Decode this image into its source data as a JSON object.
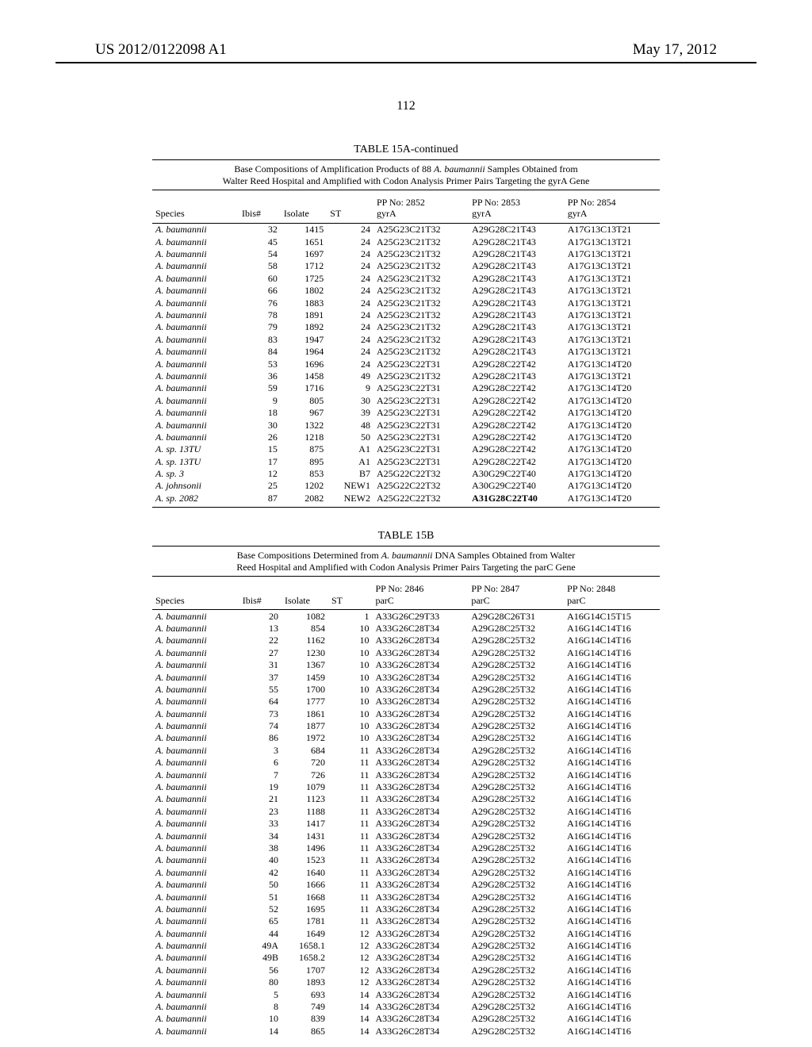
{
  "header": {
    "pub_number": "US 2012/0122098 A1",
    "pub_date": "May 17, 2012",
    "page_number": "112"
  },
  "tableA": {
    "label": "TABLE 15A-continued",
    "caption": "Base Compositions of Amplification Products of 88 A. baumannii Samples Obtained from Walter Reed Hospital and Amplified with Codon Analysis Primer Pairs Targeting the gyrA Gene",
    "columns": {
      "species": "Species",
      "ibis": "Ibis#",
      "isolate": "Isolate",
      "st": "ST",
      "pp1a": "PP No: 2852",
      "pp1b": "gyrA",
      "pp2a": "PP No: 2853",
      "pp2b": "gyrA",
      "pp3a": "PP No: 2854",
      "pp3b": "gyrA"
    },
    "rows": [
      {
        "sp": "A. baumannii",
        "ib": "32",
        "is": "1415",
        "st": "24",
        "p1": "A25G23C21T32",
        "p2": "A29G28C21T43",
        "p3": "A17G13C13T21"
      },
      {
        "sp": "A. baumannii",
        "ib": "45",
        "is": "1651",
        "st": "24",
        "p1": "A25G23C21T32",
        "p2": "A29G28C21T43",
        "p3": "A17G13C13T21"
      },
      {
        "sp": "A. baumannii",
        "ib": "54",
        "is": "1697",
        "st": "24",
        "p1": "A25G23C21T32",
        "p2": "A29G28C21T43",
        "p3": "A17G13C13T21"
      },
      {
        "sp": "A. baumannii",
        "ib": "58",
        "is": "1712",
        "st": "24",
        "p1": "A25G23C21T32",
        "p2": "A29G28C21T43",
        "p3": "A17G13C13T21"
      },
      {
        "sp": "A. baumannii",
        "ib": "60",
        "is": "1725",
        "st": "24",
        "p1": "A25G23C21T32",
        "p2": "A29G28C21T43",
        "p3": "A17G13C13T21"
      },
      {
        "sp": "A. baumannii",
        "ib": "66",
        "is": "1802",
        "st": "24",
        "p1": "A25G23C21T32",
        "p2": "A29G28C21T43",
        "p3": "A17G13C13T21"
      },
      {
        "sp": "A. baumannii",
        "ib": "76",
        "is": "1883",
        "st": "24",
        "p1": "A25G23C21T32",
        "p2": "A29G28C21T43",
        "p3": "A17G13C13T21"
      },
      {
        "sp": "A. baumannii",
        "ib": "78",
        "is": "1891",
        "st": "24",
        "p1": "A25G23C21T32",
        "p2": "A29G28C21T43",
        "p3": "A17G13C13T21"
      },
      {
        "sp": "A. baumannii",
        "ib": "79",
        "is": "1892",
        "st": "24",
        "p1": "A25G23C21T32",
        "p2": "A29G28C21T43",
        "p3": "A17G13C13T21"
      },
      {
        "sp": "A. baumannii",
        "ib": "83",
        "is": "1947",
        "st": "24",
        "p1": "A25G23C21T32",
        "p2": "A29G28C21T43",
        "p3": "A17G13C13T21"
      },
      {
        "sp": "A. baumannii",
        "ib": "84",
        "is": "1964",
        "st": "24",
        "p1": "A25G23C21T32",
        "p2": "A29G28C21T43",
        "p3": "A17G13C13T21"
      },
      {
        "sp": "A. baumannii",
        "ib": "53",
        "is": "1696",
        "st": "24",
        "p1": "A25G23C22T31",
        "p2": "A29G28C22T42",
        "p3": "A17G13C14T20"
      },
      {
        "sp": "A. baumannii",
        "ib": "36",
        "is": "1458",
        "st": "49",
        "p1": "A25G23C21T32",
        "p2": "A29G28C21T43",
        "p3": "A17G13C13T21"
      },
      {
        "sp": "A. baumannii",
        "ib": "59",
        "is": "1716",
        "st": "9",
        "p1": "A25G23C22T31",
        "p2": "A29G28C22T42",
        "p3": "A17G13C14T20"
      },
      {
        "sp": "A. baumannii",
        "ib": "9",
        "is": "805",
        "st": "30",
        "p1": "A25G23C22T31",
        "p2": "A29G28C22T42",
        "p3": "A17G13C14T20"
      },
      {
        "sp": "A. baumannii",
        "ib": "18",
        "is": "967",
        "st": "39",
        "p1": "A25G23C22T31",
        "p2": "A29G28C22T42",
        "p3": "A17G13C14T20"
      },
      {
        "sp": "A. baumannii",
        "ib": "30",
        "is": "1322",
        "st": "48",
        "p1": "A25G23C22T31",
        "p2": "A29G28C22T42",
        "p3": "A17G13C14T20"
      },
      {
        "sp": "A. baumannii",
        "ib": "26",
        "is": "1218",
        "st": "50",
        "p1": "A25G23C22T31",
        "p2": "A29G28C22T42",
        "p3": "A17G13C14T20"
      },
      {
        "sp": "A. sp. 13TU",
        "ib": "15",
        "is": "875",
        "st": "A1",
        "p1": "A25G23C22T31",
        "p2": "A29G28C22T42",
        "p3": "A17G13C14T20"
      },
      {
        "sp": "A. sp. 13TU",
        "ib": "17",
        "is": "895",
        "st": "A1",
        "p1": "A25G23C22T31",
        "p2": "A29G28C22T42",
        "p3": "A17G13C14T20"
      },
      {
        "sp": "A. sp. 3",
        "ib": "12",
        "is": "853",
        "st": "B7",
        "p1": "A25G22C22T32",
        "p2": "A30G29C22T40",
        "p3": "A17G13C14T20"
      },
      {
        "sp": "A. johnsonii",
        "ib": "25",
        "is": "1202",
        "st": "NEW1",
        "p1": "A25G22C22T32",
        "p2": "A30G29C22T40",
        "p3": "A17G13C14T20"
      },
      {
        "sp": "A. sp. 2082",
        "ib": "87",
        "is": "2082",
        "st": "NEW2",
        "p1": "A25G22C22T32",
        "p2": "A31G28C22T40",
        "p3": "A17G13C14T20",
        "p2_bold": true
      }
    ]
  },
  "tableB": {
    "label": "TABLE 15B",
    "caption": "Base Compositions Determined from A. baumannii DNA Samples Obtained from Walter Reed Hospital and Amplified with Codon Analysis Primer Pairs Targeting the parC Gene",
    "columns": {
      "species": "Species",
      "ibis": "Ibis#",
      "isolate": "Isolate",
      "st": "ST",
      "pp1a": "PP No: 2846",
      "pp1b": "parC",
      "pp2a": "PP No: 2847",
      "pp2b": "parC",
      "pp3a": "PP No: 2848",
      "pp3b": "parC"
    },
    "rows": [
      {
        "sp": "A. baumannii",
        "ib": "20",
        "is": "1082",
        "st": "1",
        "p1": "A33G26C29T33",
        "p2": "A29G28C26T31",
        "p3": "A16G14C15T15"
      },
      {
        "sp": "A. baumannii",
        "ib": "13",
        "is": "854",
        "st": "10",
        "p1": "A33G26C28T34",
        "p2": "A29G28C25T32",
        "p3": "A16G14C14T16"
      },
      {
        "sp": "A. baumannii",
        "ib": "22",
        "is": "1162",
        "st": "10",
        "p1": "A33G26C28T34",
        "p2": "A29G28C25T32",
        "p3": "A16G14C14T16"
      },
      {
        "sp": "A. baumannii",
        "ib": "27",
        "is": "1230",
        "st": "10",
        "p1": "A33G26C28T34",
        "p2": "A29G28C25T32",
        "p3": "A16G14C14T16"
      },
      {
        "sp": "A. baumannii",
        "ib": "31",
        "is": "1367",
        "st": "10",
        "p1": "A33G26C28T34",
        "p2": "A29G28C25T32",
        "p3": "A16G14C14T16"
      },
      {
        "sp": "A. baumannii",
        "ib": "37",
        "is": "1459",
        "st": "10",
        "p1": "A33G26C28T34",
        "p2": "A29G28C25T32",
        "p3": "A16G14C14T16"
      },
      {
        "sp": "A. baumannii",
        "ib": "55",
        "is": "1700",
        "st": "10",
        "p1": "A33G26C28T34",
        "p2": "A29G28C25T32",
        "p3": "A16G14C14T16"
      },
      {
        "sp": "A. baumannii",
        "ib": "64",
        "is": "1777",
        "st": "10",
        "p1": "A33G26C28T34",
        "p2": "A29G28C25T32",
        "p3": "A16G14C14T16"
      },
      {
        "sp": "A. baumannii",
        "ib": "73",
        "is": "1861",
        "st": "10",
        "p1": "A33G26C28T34",
        "p2": "A29G28C25T32",
        "p3": "A16G14C14T16"
      },
      {
        "sp": "A. baumannii",
        "ib": "74",
        "is": "1877",
        "st": "10",
        "p1": "A33G26C28T34",
        "p2": "A29G28C25T32",
        "p3": "A16G14C14T16"
      },
      {
        "sp": "A. baumannii",
        "ib": "86",
        "is": "1972",
        "st": "10",
        "p1": "A33G26C28T34",
        "p2": "A29G28C25T32",
        "p3": "A16G14C14T16"
      },
      {
        "sp": "A. baumannii",
        "ib": "3",
        "is": "684",
        "st": "11",
        "p1": "A33G26C28T34",
        "p2": "A29G28C25T32",
        "p3": "A16G14C14T16"
      },
      {
        "sp": "A. baumannii",
        "ib": "6",
        "is": "720",
        "st": "11",
        "p1": "A33G26C28T34",
        "p2": "A29G28C25T32",
        "p3": "A16G14C14T16"
      },
      {
        "sp": "A. baumannii",
        "ib": "7",
        "is": "726",
        "st": "11",
        "p1": "A33G26C28T34",
        "p2": "A29G28C25T32",
        "p3": "A16G14C14T16"
      },
      {
        "sp": "A. baumannii",
        "ib": "19",
        "is": "1079",
        "st": "11",
        "p1": "A33G26C28T34",
        "p2": "A29G28C25T32",
        "p3": "A16G14C14T16"
      },
      {
        "sp": "A. baumannii",
        "ib": "21",
        "is": "1123",
        "st": "11",
        "p1": "A33G26C28T34",
        "p2": "A29G28C25T32",
        "p3": "A16G14C14T16"
      },
      {
        "sp": "A. baumannii",
        "ib": "23",
        "is": "1188",
        "st": "11",
        "p1": "A33G26C28T34",
        "p2": "A29G28C25T32",
        "p3": "A16G14C14T16"
      },
      {
        "sp": "A. baumannii",
        "ib": "33",
        "is": "1417",
        "st": "11",
        "p1": "A33G26C28T34",
        "p2": "A29G28C25T32",
        "p3": "A16G14C14T16"
      },
      {
        "sp": "A. baumannii",
        "ib": "34",
        "is": "1431",
        "st": "11",
        "p1": "A33G26C28T34",
        "p2": "A29G28C25T32",
        "p3": "A16G14C14T16"
      },
      {
        "sp": "A. baumannii",
        "ib": "38",
        "is": "1496",
        "st": "11",
        "p1": "A33G26C28T34",
        "p2": "A29G28C25T32",
        "p3": "A16G14C14T16"
      },
      {
        "sp": "A. baumannii",
        "ib": "40",
        "is": "1523",
        "st": "11",
        "p1": "A33G26C28T34",
        "p2": "A29G28C25T32",
        "p3": "A16G14C14T16"
      },
      {
        "sp": "A. baumannii",
        "ib": "42",
        "is": "1640",
        "st": "11",
        "p1": "A33G26C28T34",
        "p2": "A29G28C25T32",
        "p3": "A16G14C14T16"
      },
      {
        "sp": "A. baumannii",
        "ib": "50",
        "is": "1666",
        "st": "11",
        "p1": "A33G26C28T34",
        "p2": "A29G28C25T32",
        "p3": "A16G14C14T16"
      },
      {
        "sp": "A. baumannii",
        "ib": "51",
        "is": "1668",
        "st": "11",
        "p1": "A33G26C28T34",
        "p2": "A29G28C25T32",
        "p3": "A16G14C14T16"
      },
      {
        "sp": "A. baumannii",
        "ib": "52",
        "is": "1695",
        "st": "11",
        "p1": "A33G26C28T34",
        "p2": "A29G28C25T32",
        "p3": "A16G14C14T16"
      },
      {
        "sp": "A. baumannii",
        "ib": "65",
        "is": "1781",
        "st": "11",
        "p1": "A33G26C28T34",
        "p2": "A29G28C25T32",
        "p3": "A16G14C14T16"
      },
      {
        "sp": "A. baumannii",
        "ib": "44",
        "is": "1649",
        "st": "12",
        "p1": "A33G26C28T34",
        "p2": "A29G28C25T32",
        "p3": "A16G14C14T16"
      },
      {
        "sp": "A. baumannii",
        "ib": "49A",
        "is": "1658.1",
        "st": "12",
        "p1": "A33G26C28T34",
        "p2": "A29G28C25T32",
        "p3": "A16G14C14T16"
      },
      {
        "sp": "A. baumannii",
        "ib": "49B",
        "is": "1658.2",
        "st": "12",
        "p1": "A33G26C28T34",
        "p2": "A29G28C25T32",
        "p3": "A16G14C14T16"
      },
      {
        "sp": "A. baumannii",
        "ib": "56",
        "is": "1707",
        "st": "12",
        "p1": "A33G26C28T34",
        "p2": "A29G28C25T32",
        "p3": "A16G14C14T16"
      },
      {
        "sp": "A. baumannii",
        "ib": "80",
        "is": "1893",
        "st": "12",
        "p1": "A33G26C28T34",
        "p2": "A29G28C25T32",
        "p3": "A16G14C14T16"
      },
      {
        "sp": "A. baumannii",
        "ib": "5",
        "is": "693",
        "st": "14",
        "p1": "A33G26C28T34",
        "p2": "A29G28C25T32",
        "p3": "A16G14C14T16"
      },
      {
        "sp": "A. baumannii",
        "ib": "8",
        "is": "749",
        "st": "14",
        "p1": "A33G26C28T34",
        "p2": "A29G28C25T32",
        "p3": "A16G14C14T16"
      },
      {
        "sp": "A. baumannii",
        "ib": "10",
        "is": "839",
        "st": "14",
        "p1": "A33G26C28T34",
        "p2": "A29G28C25T32",
        "p3": "A16G14C14T16"
      },
      {
        "sp": "A. baumannii",
        "ib": "14",
        "is": "865",
        "st": "14",
        "p1": "A33G26C28T34",
        "p2": "A29G28C25T32",
        "p3": "A16G14C14T16"
      }
    ]
  }
}
